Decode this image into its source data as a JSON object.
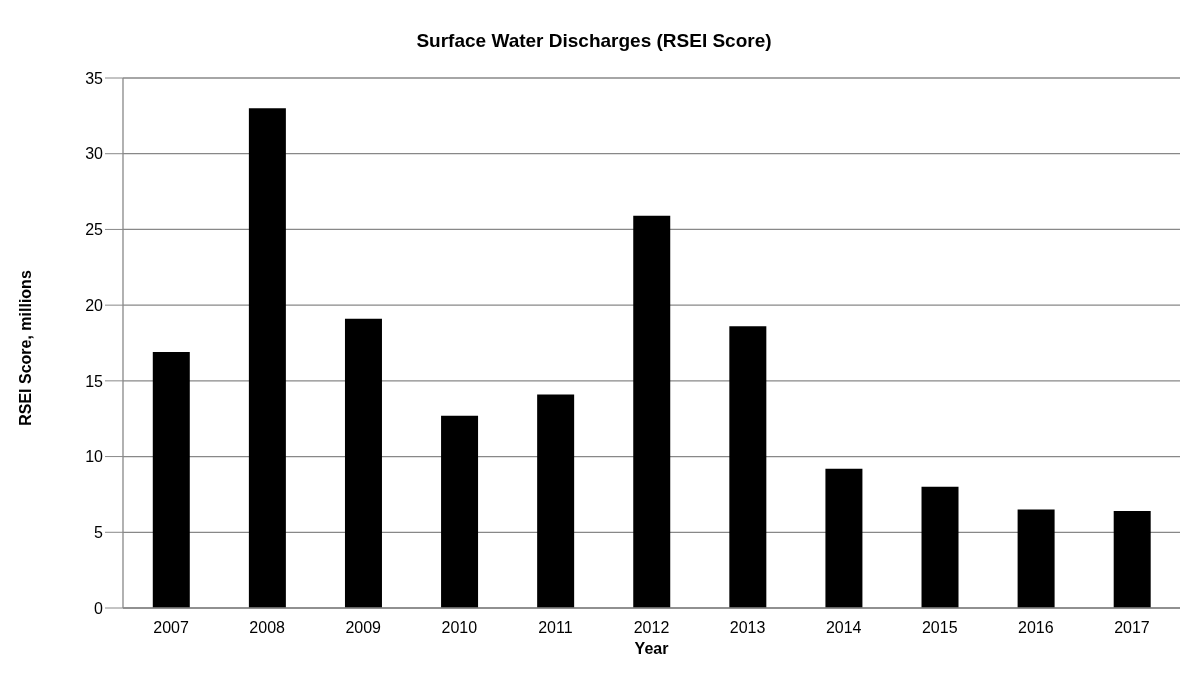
{
  "chart_data": {
    "type": "bar",
    "title": "Surface Water Discharges (RSEI Score)",
    "xlabel": "Year",
    "ylabel": "RSEI Score, millions",
    "categories": [
      "2007",
      "2008",
      "2009",
      "2010",
      "2011",
      "2012",
      "2013",
      "2014",
      "2015",
      "2016",
      "2017"
    ],
    "values": [
      16.9,
      33.0,
      19.1,
      12.7,
      14.1,
      25.9,
      18.6,
      9.2,
      8.0,
      6.5,
      6.4
    ],
    "color": "#000000",
    "ylim": [
      0,
      35
    ],
    "yticks": [
      0,
      5,
      10,
      15,
      20,
      25,
      30,
      35
    ],
    "grid": "y",
    "legend": false
  }
}
